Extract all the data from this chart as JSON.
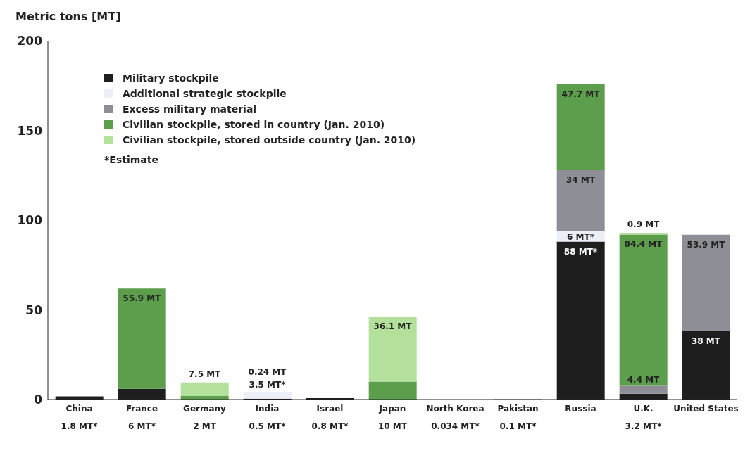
{
  "chart_data": {
    "type": "bar",
    "stacked": true,
    "ylabel": "Metric tons [MT]",
    "categories": [
      "China",
      "France",
      "Germany",
      "India",
      "Israel",
      "Japan",
      "North Korea",
      "Pakistan",
      "Russia",
      "U.K.",
      "United States"
    ],
    "series": [
      {
        "name": "Military stockpile",
        "color": "#1e1e1e",
        "values": [
          1.8,
          6,
          null,
          0.5,
          0.8,
          null,
          0.034,
          0.1,
          88,
          3.2,
          38
        ],
        "value_labels": [
          "1.8 MT*",
          "6 MT*",
          null,
          "0.5 MT*",
          "0.8 MT*",
          null,
          "0.034 MT*",
          "0.1 MT*",
          "88 MT*",
          "3.2 MT*",
          "38 MT"
        ]
      },
      {
        "name": "Additional strategic stockpile",
        "color": "#eceef8",
        "values": [
          null,
          null,
          null,
          3.5,
          null,
          null,
          null,
          null,
          6,
          null,
          null
        ],
        "value_labels": [
          null,
          null,
          null,
          "3.5 MT*",
          null,
          null,
          null,
          null,
          "6 MT*",
          null,
          null
        ]
      },
      {
        "name": "Excess military material",
        "color": "#8e8e96",
        "values": [
          null,
          null,
          null,
          null,
          null,
          null,
          null,
          null,
          34,
          4.4,
          53.9
        ],
        "value_labels": [
          null,
          null,
          null,
          null,
          null,
          null,
          null,
          null,
          "34 MT",
          "4.4 MT",
          "53.9 MT"
        ]
      },
      {
        "name": "Civilian stockpile, stored in country (Jan. 2010)",
        "color": "#5c9e4c",
        "values": [
          null,
          55.9,
          2,
          0.24,
          null,
          10,
          null,
          null,
          47.7,
          84.4,
          null
        ],
        "value_labels": [
          null,
          "55.9 MT",
          "2 MT",
          "0.24 MT",
          null,
          "10 MT",
          null,
          null,
          "47.7 MT",
          "84.4 MT",
          null
        ]
      },
      {
        "name": "Civilian stockpile, stored outside country (Jan. 2010)",
        "color": "#b3e09a",
        "values": [
          null,
          null,
          7.5,
          null,
          null,
          36.1,
          null,
          null,
          null,
          0.9,
          null
        ],
        "value_labels": [
          null,
          null,
          "7.5 MT",
          null,
          null,
          "36.1 MT",
          null,
          null,
          null,
          "0.9 MT",
          null
        ]
      }
    ],
    "ylim": [
      0,
      200
    ],
    "yticks": [
      0,
      50,
      100,
      150,
      200
    ],
    "grid": false,
    "legend": "top left",
    "annotations": [
      "*Estimate"
    ]
  }
}
